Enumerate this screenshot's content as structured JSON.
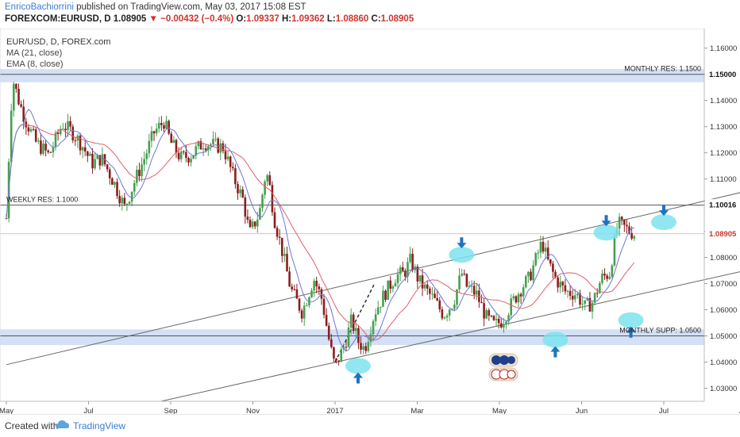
{
  "header": {
    "author": "EnricoBachiorrini",
    "published": "published on TradingView.com, May 03, 2017 15:08 EST",
    "symbol": "FOREXCOM:EURUSD, D",
    "last": "1.08905",
    "change": "−0.00432 (−0.4%)",
    "o_label": "O:",
    "o_value": "1.09337",
    "h_label": "H:",
    "h_value": "1.09362",
    "l_label": "L:",
    "l_value": "1.08860",
    "c_label": "C:",
    "c_value": "1.08905"
  },
  "legend": {
    "title": "EUR/USD, D, FOREX.com",
    "ma": "MA (21, close)",
    "ema": "EMA (8, close)"
  },
  "footer": {
    "created_with": "Created with",
    "brand": "TradingView"
  },
  "colors": {
    "up": "#46a050",
    "down": "#8b1e1e",
    "ma": "#e0606a",
    "ema": "#6b77d6",
    "zone": "#c8d8f3",
    "marker": "#1e73c0",
    "ellipse": "#7de3ee"
  },
  "chart_data": {
    "type": "candlestick",
    "title": "EUR/USD, D, FOREX.com",
    "x_ticks": [
      "May",
      "Jul",
      "Sep",
      "Nov",
      "2017",
      "Mar",
      "May",
      "Jun",
      "Jul",
      "Aug"
    ],
    "y_ticks": [
      "1.16000",
      "1.15000",
      "1.14000",
      "1.13000",
      "1.12000",
      "1.11000",
      "1.10000",
      "1.09000",
      "1.08000",
      "1.07000",
      "1.06000",
      "1.05000",
      "1.04000",
      "1.03000"
    ],
    "ylim": [
      1.025,
      1.1675
    ],
    "price_tags": [
      {
        "value": 1.15,
        "text": "1.15000",
        "style": "dark"
      },
      {
        "value": 1.10016,
        "text": "1.10016",
        "style": "dark"
      },
      {
        "value": 1.08905,
        "text": "1.08905",
        "style": "red"
      }
    ],
    "levels": [
      {
        "label": "MONTHLY RES: 1.1500",
        "value": 1.15,
        "zone": [
          1.147,
          1.152
        ],
        "align": "right"
      },
      {
        "label": "WEEKLY RES: 1.1000",
        "value": 1.1,
        "zone": null,
        "align": "left"
      },
      {
        "label": "MONTHLY SUPP: 1.0500",
        "value": 1.05,
        "zone": [
          1.0465,
          1.0525
        ],
        "align": "right"
      }
    ],
    "trendlines": [
      {
        "from": [
          0,
          1.039
        ],
        "to": [
          2.8,
          1.1215
        ]
      },
      {
        "from": [
          0.47,
          1.025
        ],
        "to": [
          2.8,
          1.0905
        ]
      }
    ],
    "markers": [
      {
        "x": 1.07,
        "y": 1.0385,
        "dir": "up"
      },
      {
        "x": 1.385,
        "y": 1.081,
        "dir": "down"
      },
      {
        "x": 1.67,
        "y": 1.0485,
        "dir": "up"
      },
      {
        "x": 1.825,
        "y": 1.0895,
        "dir": "down"
      },
      {
        "x": 1.9,
        "y": 1.056,
        "dir": "up"
      },
      {
        "x": 2.0,
        "y": 1.0935,
        "dir": "down"
      }
    ],
    "close_series": [
      [
        0.0,
        1.095
      ],
      [
        0.013,
        1.135
      ],
      [
        0.02,
        1.148
      ],
      [
        0.04,
        1.139
      ],
      [
        0.06,
        1.132
      ],
      [
        0.09,
        1.124
      ],
      [
        0.13,
        1.119
      ],
      [
        0.17,
        1.131
      ],
      [
        0.2,
        1.128
      ],
      [
        0.23,
        1.123
      ],
      [
        0.26,
        1.116
      ],
      [
        0.29,
        1.118
      ],
      [
        0.33,
        1.108
      ],
      [
        0.36,
        1.099
      ],
      [
        0.39,
        1.109
      ],
      [
        0.42,
        1.118
      ],
      [
        0.45,
        1.128
      ],
      [
        0.48,
        1.132
      ],
      [
        0.5,
        1.124
      ],
      [
        0.53,
        1.118
      ],
      [
        0.56,
        1.119
      ],
      [
        0.6,
        1.124
      ],
      [
        0.63,
        1.123
      ],
      [
        0.66,
        1.122
      ],
      [
        0.69,
        1.111
      ],
      [
        0.72,
        1.102
      ],
      [
        0.74,
        1.089
      ],
      [
        0.77,
        1.097
      ],
      [
        0.79,
        1.113
      ],
      [
        0.8,
        1.108
      ],
      [
        0.815,
        1.095
      ],
      [
        0.84,
        1.082
      ],
      [
        0.865,
        1.068
      ],
      [
        0.9,
        1.059
      ],
      [
        0.935,
        1.072
      ],
      [
        0.96,
        1.064
      ],
      [
        0.985,
        1.046
      ],
      [
        1.0,
        1.038
      ],
      [
        1.03,
        1.047
      ],
      [
        1.05,
        1.056
      ],
      [
        1.07,
        1.048
      ],
      [
        1.09,
        1.045
      ],
      [
        1.12,
        1.059
      ],
      [
        1.15,
        1.066
      ],
      [
        1.185,
        1.073
      ],
      [
        1.21,
        1.074
      ],
      [
        1.23,
        1.079
      ],
      [
        1.255,
        1.071
      ],
      [
        1.28,
        1.067
      ],
      [
        1.3,
        1.064
      ],
      [
        1.33,
        1.058
      ],
      [
        1.36,
        1.063
      ],
      [
        1.385,
        1.074
      ],
      [
        1.4,
        1.069
      ],
      [
        1.43,
        1.066
      ],
      [
        1.46,
        1.057
      ],
      [
        1.485,
        1.054
      ],
      [
        1.51,
        1.056
      ],
      [
        1.54,
        1.063
      ],
      [
        1.57,
        1.069
      ],
      [
        1.59,
        1.072
      ],
      [
        1.61,
        1.079
      ],
      [
        1.63,
        1.086
      ],
      [
        1.645,
        1.079
      ],
      [
        1.67,
        1.072
      ],
      [
        1.7,
        1.067
      ],
      [
        1.735,
        1.066
      ],
      [
        1.76,
        1.061
      ],
      [
        1.785,
        1.063
      ],
      [
        1.81,
        1.072
      ],
      [
        1.835,
        1.074
      ],
      [
        1.86,
        1.093
      ],
      [
        1.885,
        1.091
      ],
      [
        1.91,
        1.089
      ]
    ]
  }
}
